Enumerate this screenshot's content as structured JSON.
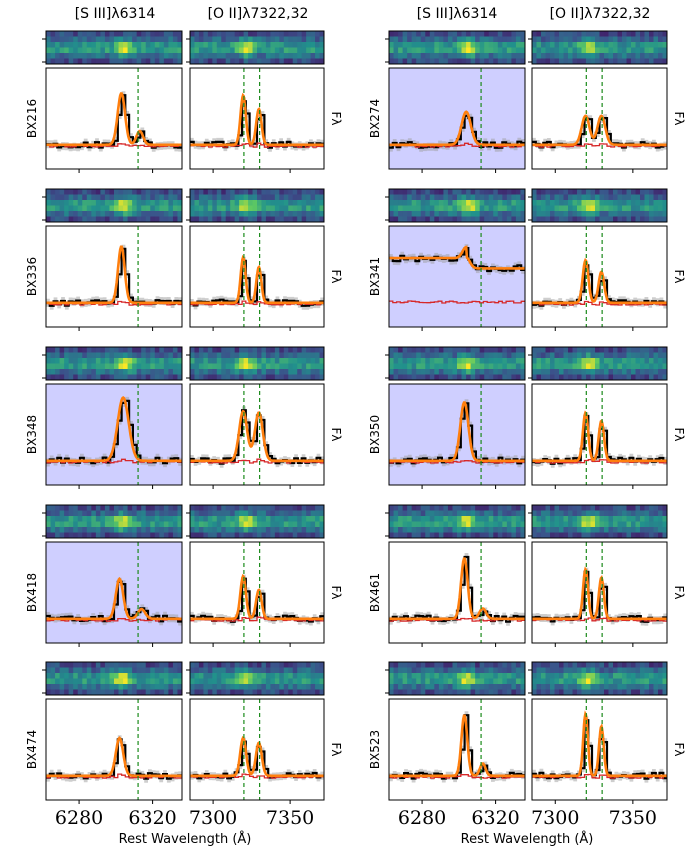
{
  "figure": {
    "column_headers": [
      "[S III]λ6314",
      "[O II]λ7322,32",
      "[S III]λ6314",
      "[O II]λ7322,32"
    ],
    "xlabel": "Rest Wavelength (Å)",
    "ylabel_right": "Fλ",
    "colors": {
      "data": "#000000",
      "error": "#9e9e9e",
      "model": "#ff7f0e",
      "noise": "#d62728",
      "line_marker": "#1a8a1a",
      "masked_bg": "#cfcfff"
    }
  },
  "chart_data": {
    "type": "line",
    "x_axes": {
      "siii": {
        "range": [
          6262,
          6336
        ],
        "ticks": [
          6280,
          6320
        ],
        "tick_labels": [
          "6280",
          "6320"
        ],
        "line_center": 6312.1
      },
      "oii": {
        "range": [
          7285,
          7372
        ],
        "ticks": [
          7300,
          7350
        ],
        "tick_labels": [
          "7300",
          "7350"
        ],
        "line_centers": [
          7320.0,
          7330.2
        ]
      }
    },
    "panels": [
      {
        "name": "BX216",
        "column": 0,
        "siii": {
          "masked": false,
          "amp": 0.75,
          "center": 6303,
          "width": 2.0,
          "secondary": {
            "center": 6313,
            "amp": 0.2,
            "width": 1.8
          }
        },
        "oii": {
          "masked": false,
          "amps": [
            0.72,
            0.52
          ],
          "width": 1.7
        }
      },
      {
        "name": "BX274",
        "column": 1,
        "siii": {
          "masked": true,
          "amp": 0.48,
          "center": 6304,
          "width": 2.5
        },
        "oii": {
          "masked": false,
          "amps": [
            0.42,
            0.42
          ],
          "width": 2.5
        }
      },
      {
        "name": "BX336",
        "column": 0,
        "siii": {
          "masked": false,
          "amp": 0.82,
          "center": 6303,
          "width": 1.8
        },
        "oii": {
          "masked": false,
          "amps": [
            0.66,
            0.52
          ],
          "width": 1.6
        }
      },
      {
        "name": "BX341",
        "column": 1,
        "siii": {
          "masked": true,
          "amp": 0.16,
          "center": 6304,
          "width": 2.0,
          "step": true
        },
        "oii": {
          "masked": false,
          "amps": [
            0.62,
            0.45
          ],
          "width": 1.8
        }
      },
      {
        "name": "BX348",
        "column": 0,
        "siii": {
          "masked": true,
          "amp": 0.92,
          "center": 6304,
          "width": 3.0
        },
        "oii": {
          "masked": false,
          "amps": [
            0.72,
            0.7
          ],
          "width": 2.6
        }
      },
      {
        "name": "BX350",
        "column": 1,
        "siii": {
          "masked": true,
          "amp": 0.85,
          "center": 6303,
          "width": 2.2
        },
        "oii": {
          "masked": false,
          "amps": [
            0.7,
            0.58
          ],
          "width": 1.7
        }
      },
      {
        "name": "BX418",
        "column": 0,
        "siii": {
          "masked": true,
          "amp": 0.58,
          "center": 6302,
          "width": 2.0,
          "secondary": {
            "center": 6314,
            "amp": 0.14,
            "width": 2.0
          }
        },
        "oii": {
          "masked": false,
          "amps": [
            0.62,
            0.42
          ],
          "width": 1.8
        }
      },
      {
        "name": "BX461",
        "column": 1,
        "siii": {
          "masked": false,
          "amp": 0.88,
          "center": 6303,
          "width": 1.8,
          "secondary": {
            "center": 6313,
            "amp": 0.15,
            "width": 1.8
          }
        },
        "oii": {
          "masked": false,
          "amps": [
            0.72,
            0.6
          ],
          "width": 1.6
        }
      },
      {
        "name": "BX474",
        "column": 0,
        "siii": {
          "masked": false,
          "amp": 0.55,
          "center": 6302,
          "width": 2.0
        },
        "oii": {
          "masked": false,
          "amps": [
            0.55,
            0.48
          ],
          "width": 1.9
        }
      },
      {
        "name": "BX523",
        "column": 1,
        "siii": {
          "masked": false,
          "amp": 0.88,
          "center": 6303,
          "width": 1.6,
          "secondary": {
            "center": 6313,
            "amp": 0.18,
            "width": 1.5
          }
        },
        "oii": {
          "masked": false,
          "amps": [
            0.9,
            0.72
          ],
          "width": 1.5
        }
      }
    ]
  }
}
